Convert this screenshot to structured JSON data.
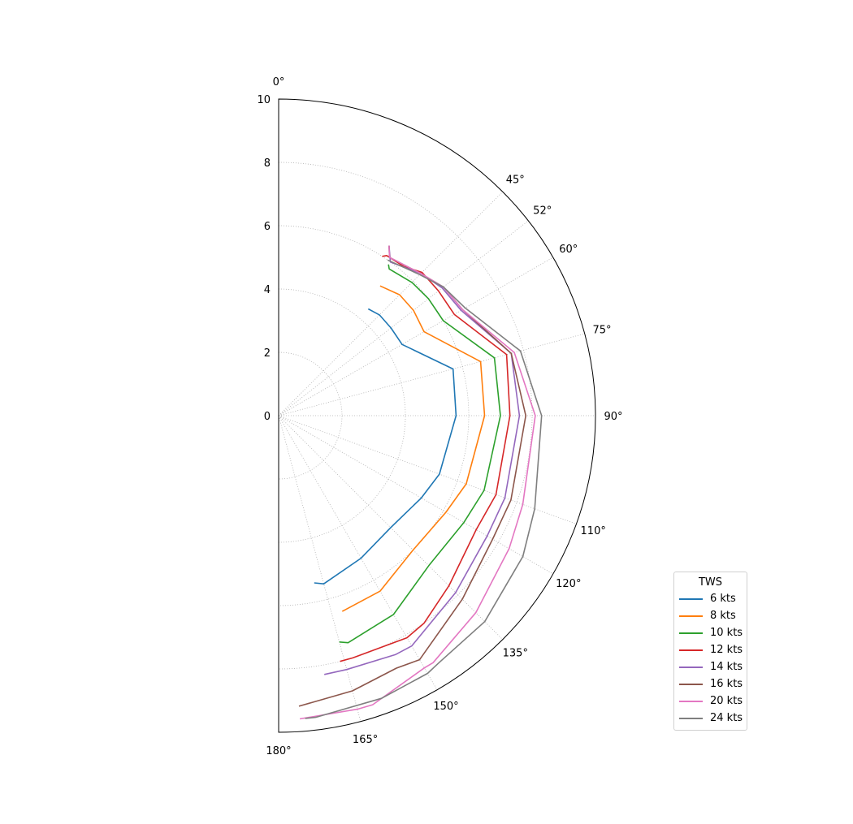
{
  "chart_data": {
    "type": "line",
    "projection": "polar",
    "theta_range_deg": [
      0,
      180
    ],
    "theta_ticks_deg": [
      0,
      45,
      52,
      60,
      75,
      90,
      110,
      120,
      135,
      150,
      165,
      180
    ],
    "theta_tick_labels": [
      "0°",
      "45°",
      "52°",
      "60°",
      "75°",
      "90°",
      "110°",
      "120°",
      "135°",
      "150°",
      "165°",
      "180°"
    ],
    "r_range": [
      0,
      10
    ],
    "r_ticks": [
      0,
      2,
      4,
      6,
      8,
      10
    ],
    "r_tick_labels": [
      "0",
      "2",
      "4",
      "6",
      "8",
      "10"
    ],
    "grid": true,
    "legend": {
      "title": "TWS",
      "placement": "bottom-right"
    },
    "series": [
      {
        "name": "6 kts",
        "color": "#1f77b4",
        "theta_deg": [
          40,
          45,
          52,
          60,
          75,
          90,
          110,
          120,
          135,
          150,
          165,
          168
        ],
        "r": [
          4.4,
          4.5,
          4.5,
          4.5,
          5.7,
          5.6,
          5.4,
          5.2,
          5.0,
          5.2,
          5.5,
          5.4
        ]
      },
      {
        "name": "8 kts",
        "color": "#ff7f0e",
        "theta_deg": [
          38,
          45,
          52,
          60,
          75,
          90,
          110,
          120,
          135,
          150,
          162
        ],
        "r": [
          5.2,
          5.4,
          5.4,
          5.3,
          6.6,
          6.5,
          6.3,
          6.1,
          6.0,
          6.4,
          6.5
        ]
      },
      {
        "name": "10 kts",
        "color": "#2ca02c",
        "theta_deg": [
          36,
          37,
          45,
          52,
          60,
          75,
          90,
          110,
          120,
          135,
          150,
          163,
          165
        ],
        "r": [
          5.9,
          5.8,
          5.95,
          6.0,
          6.0,
          7.05,
          7.0,
          6.9,
          6.75,
          6.7,
          7.25,
          7.5,
          7.4
        ]
      },
      {
        "name": "12 kts",
        "color": "#d62728",
        "theta_deg": [
          33,
          34,
          40,
          45,
          52,
          60,
          75,
          90,
          110,
          120,
          135,
          145,
          150,
          163,
          166
        ],
        "r": [
          6.0,
          6.1,
          6.15,
          6.4,
          6.4,
          6.4,
          7.45,
          7.3,
          7.3,
          7.2,
          7.6,
          8.0,
          8.1,
          8.0,
          8.0
        ]
      },
      {
        "name": "14 kts",
        "color": "#9467bd",
        "theta_deg": [
          33,
          36,
          45,
          52,
          60,
          75,
          90,
          110,
          120,
          135,
          150,
          154,
          165,
          170
        ],
        "r": [
          6.4,
          6.0,
          6.35,
          6.55,
          6.65,
          7.6,
          7.6,
          7.6,
          7.6,
          7.9,
          8.4,
          8.4,
          8.3,
          8.3
        ]
      },
      {
        "name": "16 kts",
        "color": "#8c564b",
        "theta_deg": [
          33,
          35,
          45,
          52,
          60,
          75,
          90,
          110,
          120,
          135,
          150,
          155,
          165,
          176
        ],
        "r": [
          6.4,
          6.1,
          6.35,
          6.6,
          6.7,
          7.6,
          7.8,
          7.8,
          7.8,
          8.2,
          8.9,
          8.8,
          9.0,
          9.2
        ]
      },
      {
        "name": "20 kts",
        "color": "#e377c2",
        "theta_deg": [
          33,
          35,
          45,
          52,
          60,
          75,
          90,
          110,
          120,
          135,
          148,
          150,
          162,
          165,
          176
        ],
        "r": [
          6.4,
          6.1,
          6.35,
          6.6,
          6.7,
          7.7,
          8.1,
          8.2,
          8.4,
          8.8,
          9.2,
          9.2,
          9.6,
          9.6,
          9.6
        ]
      },
      {
        "name": "24 kts",
        "color": "#7f7f7f",
        "theta_deg": [
          35,
          45,
          52,
          60,
          75,
          90,
          110,
          120,
          135,
          147,
          150,
          160,
          173,
          175
        ],
        "r": [
          6.0,
          6.3,
          6.6,
          6.8,
          7.9,
          8.3,
          8.6,
          8.9,
          9.2,
          9.3,
          9.4,
          9.5,
          9.6,
          9.6
        ]
      }
    ]
  }
}
